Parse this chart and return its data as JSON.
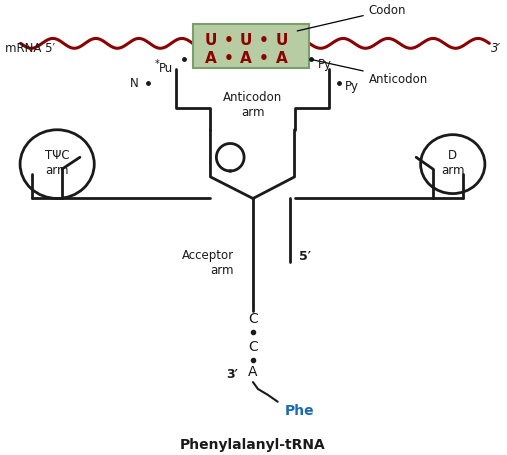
{
  "background_color": "#ffffff",
  "mrna_color": "#8B0000",
  "codon_box_facecolor": "#b8cca4",
  "codon_box_edgecolor": "#7a9e6e",
  "codon_letters_color": "#8B0000",
  "anticodon_letters_color": "#8B0000",
  "trna_color": "#1a1a1a",
  "dot_color": "#1a1a1a",
  "label_color": "#1a1a1a",
  "phe_color": "#1a6bb5",
  "title_color": "#1a1a1a",
  "title": "Phenylalanyl-tRNA",
  "mrna_label": "mRNA 5′",
  "mrna_3prime": "3′",
  "codon_label": "Codon",
  "anticodon_label": "Anticodon",
  "anticodon_arm_label": "Anticodon\narm",
  "tpsi_label": "TΨC\narm",
  "d_label": "D\narm",
  "acceptor_label": "Acceptor\narm",
  "five_prime_label": "5′",
  "three_prime_label": "3′",
  "phe_label": "Phe",
  "n_label": "N",
  "pu_label": "Pu",
  "py_label": "Py"
}
